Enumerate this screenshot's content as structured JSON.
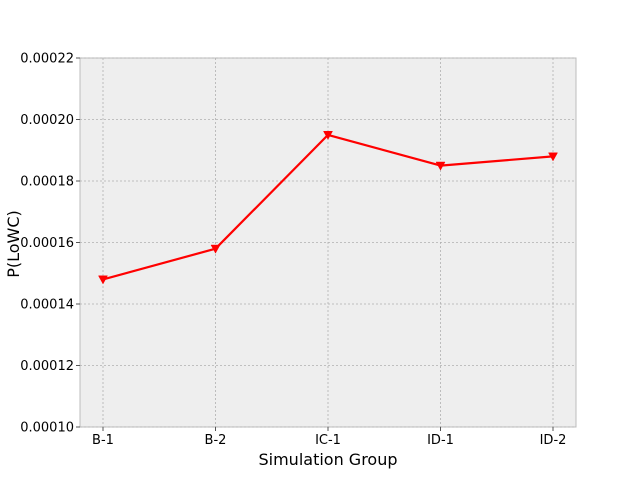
{
  "chart_data": {
    "type": "line",
    "title": "",
    "xlabel": "Simulation Group",
    "ylabel": "P(LoWC)",
    "categories": [
      "B-1",
      "B-2",
      "IC-1",
      "ID-1",
      "ID-2"
    ],
    "series": [
      {
        "values": [
          0.000148,
          0.000158,
          0.000195,
          0.000185,
          0.000188
        ],
        "color": "#ff0000",
        "marker": "triangle-down"
      }
    ],
    "ylim": [
      0.0001,
      0.00022
    ],
    "yticks": [
      0.0001,
      0.00012,
      0.00014,
      0.00016,
      0.00018,
      0.0002,
      0.00022
    ],
    "ytick_labels": [
      "0.00010",
      "0.00012",
      "0.00014",
      "0.00016",
      "0.00018",
      "0.00020",
      "0.00022"
    ],
    "grid": true,
    "plot_background": "#eeeeee",
    "grid_color": "#b0b0b0"
  }
}
